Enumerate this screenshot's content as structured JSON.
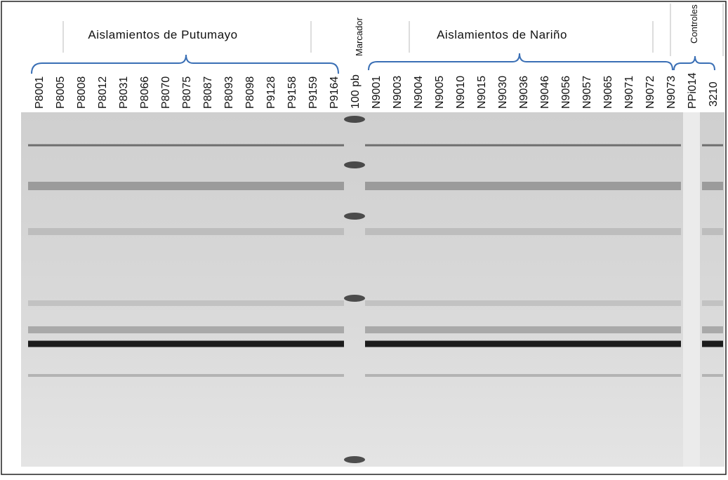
{
  "header": {
    "group_1": "Aislamientos  de Putumayo",
    "group_2": "Aislamientos  de Nariño",
    "marker": "Marcador",
    "controls": "Controles"
  },
  "lanes": [
    "P8001",
    "P8005",
    "P8008",
    "P8012",
    "P8031",
    "P8066",
    "P8070",
    "P8075",
    "P8087",
    "P8093",
    "P8098",
    "P9128",
    "P9158",
    "P9159",
    "P9164",
    "100 pb",
    "N9001",
    "N9003",
    "N9004",
    "N9005",
    "N9010",
    "N9015",
    "N9030",
    "N9036",
    "N9046",
    "N9056",
    "N9057",
    "N9065",
    "N9071",
    "N9072",
    "N9073",
    "PPi014",
    "3210"
  ]
}
